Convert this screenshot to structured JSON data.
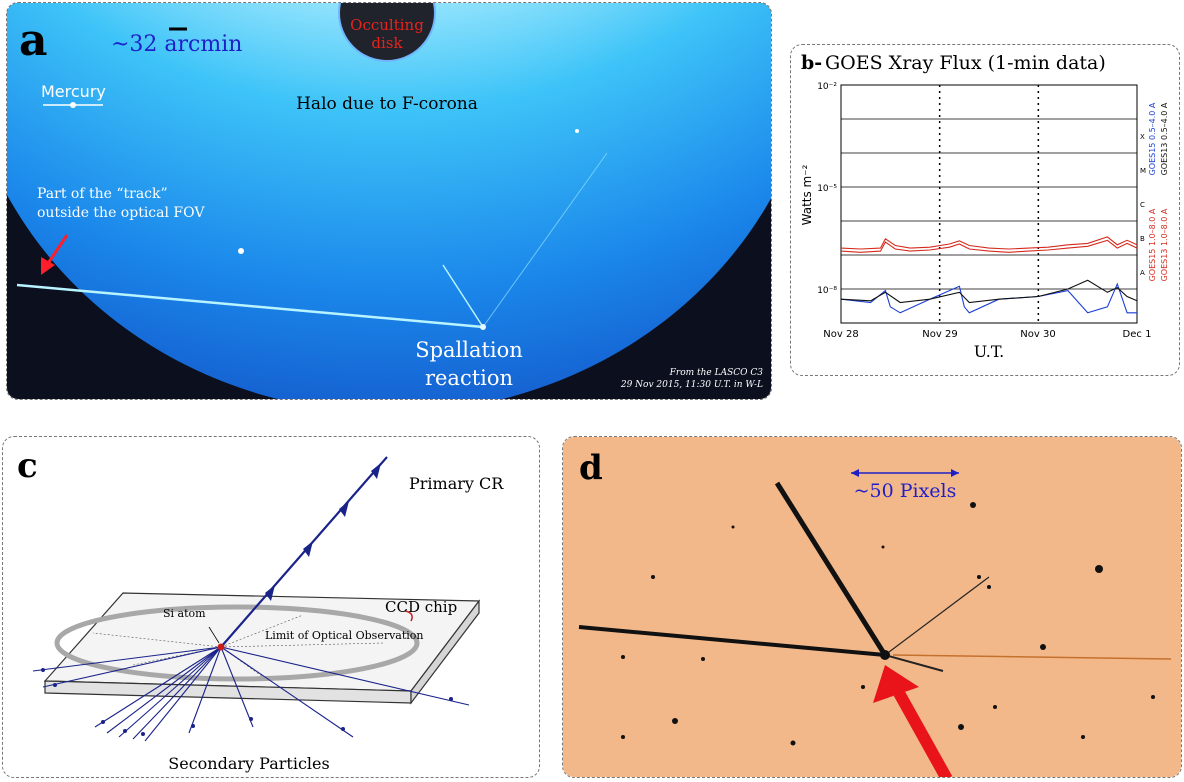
{
  "colors": {
    "sky_blue": "#1f8ff0",
    "halo_white": "#ffffff",
    "goes_red": "#d42b1e",
    "goes_blue": "#1a3fd6",
    "goes_black": "#111111",
    "cr_blue": "#1a238a",
    "ccd_background": "#f3b88a",
    "arrow_red": "#e8141a"
  },
  "panel_a": {
    "label": "a",
    "scale_label": "~32 arcmin",
    "disk_label_line1": "Occulting",
    "disk_label_line2": "disk",
    "halo_label": "Halo due to F-corona",
    "mercury_label": "Mercury",
    "track_label_line1": "Part of the “track”",
    "track_label_line2": "outside the optical FOV",
    "spallation_line1": "Spallation",
    "spallation_line2": "reaction",
    "credit_line1": "From the LASCO C3",
    "credit_line2": "29 Nov 2015, 11:30 U.T. in W-L"
  },
  "panel_b": {
    "label": "b-",
    "title": "GOES Xray Flux (1-min data)",
    "ylabel": "Watts m⁻²",
    "xlabel": "U.T.",
    "legend": [
      "GOES15 1.0–8.0 A",
      "GOES13 1.0–8.0 A",
      "GOES15 0.5–4.0 A",
      "GOES13 0.5–4.0 A"
    ],
    "class_letters": [
      "X",
      "M",
      "C",
      "B",
      "A"
    ]
  },
  "chart_data": {
    "type": "line",
    "title": "GOES Xray Flux (1-min data)",
    "xlabel": "U.T.",
    "ylabel": "Watts m^-2",
    "yscale": "log",
    "ylim": [
      1e-09,
      0.01
    ],
    "x_ticks": [
      "Nov 28",
      "Nov 29",
      "Nov 30",
      "Dec 1"
    ],
    "y_ticks": [
      "10⁻²",
      "10⁻⁵",
      "10⁻⁸"
    ],
    "xlim_days": [
      0,
      3
    ],
    "series": [
      {
        "name": "GOES15 1.0–8.0 A",
        "color": "#d42b1e",
        "x": [
          0,
          0.2,
          0.4,
          0.45,
          0.55,
          0.7,
          0.9,
          1.1,
          1.2,
          1.3,
          1.5,
          1.7,
          1.9,
          2.1,
          2.3,
          2.5,
          2.7,
          2.8,
          2.9,
          3.0
        ],
        "y": [
          1.6e-07,
          1.5e-07,
          1.6e-07,
          3e-07,
          1.9e-07,
          1.6e-07,
          1.7e-07,
          2.1e-07,
          2.6e-07,
          1.9e-07,
          1.6e-07,
          1.5e-07,
          1.6e-07,
          1.7e-07,
          2e-07,
          2.2e-07,
          3.4e-07,
          2e-07,
          2.7e-07,
          2e-07
        ]
      },
      {
        "name": "GOES13 1.0–8.0 A",
        "color": "#d42b1e",
        "x": [
          0,
          0.2,
          0.4,
          0.45,
          0.55,
          0.7,
          0.9,
          1.1,
          1.2,
          1.3,
          1.5,
          1.7,
          1.9,
          2.1,
          2.3,
          2.5,
          2.7,
          2.8,
          2.9,
          3.0
        ],
        "y": [
          1.3e-07,
          1.2e-07,
          1.3e-07,
          2.4e-07,
          1.5e-07,
          1.3e-07,
          1.4e-07,
          1.7e-07,
          2.1e-07,
          1.5e-07,
          1.3e-07,
          1.2e-07,
          1.3e-07,
          1.4e-07,
          1.6e-07,
          1.8e-07,
          2.7e-07,
          1.6e-07,
          2.2e-07,
          1.6e-07
        ]
      },
      {
        "name": "GOES15 0.5–4.0 A",
        "color": "#1a3fd6",
        "x": [
          0,
          0.3,
          0.45,
          0.5,
          0.6,
          0.9,
          1.2,
          1.25,
          1.3,
          1.6,
          2.0,
          2.3,
          2.5,
          2.7,
          2.8,
          2.9,
          3.0
        ],
        "y": [
          5e-09,
          4e-09,
          9e-09,
          3e-09,
          2e-09,
          5e-09,
          1.2e-08,
          3e-09,
          2e-09,
          5e-09,
          6e-09,
          9e-09,
          2e-09,
          3e-09,
          1.4e-08,
          2e-09,
          2e-09
        ]
      },
      {
        "name": "GOES13 0.5–4.0 A",
        "color": "#111111",
        "x": [
          0,
          0.3,
          0.45,
          0.6,
          0.9,
          1.2,
          1.3,
          1.6,
          2.0,
          2.3,
          2.5,
          2.7,
          2.8,
          2.9,
          3.0
        ],
        "y": [
          5e-09,
          4.5e-09,
          8e-09,
          4e-09,
          5e-09,
          8e-09,
          4e-09,
          5e-09,
          6e-09,
          1e-08,
          1.8e-08,
          8e-09,
          1.1e-08,
          6e-09,
          4.5e-09
        ]
      }
    ]
  },
  "panel_c": {
    "label": "c",
    "primary_label": "Primary CR",
    "chip_label": "CCD chip",
    "atom_label": "Si atom",
    "limit_label": "Limit of Optical Observation",
    "secondary_label": "Secondary Particles"
  },
  "panel_d": {
    "label": "d",
    "scale_label": "~50 Pixels"
  }
}
